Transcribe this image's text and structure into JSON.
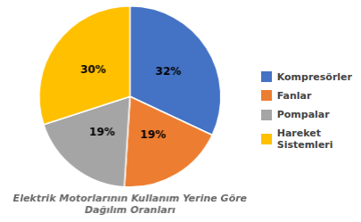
{
  "chart_data": {
    "type": "pie",
    "title": "Elektrik Motorlarının Kullanım Yerine Göre\nDağılım Oranları",
    "categories": [
      "Kompresörler",
      "Fanlar",
      "Pompalar",
      "Hareket\nSistemleri"
    ],
    "values": [
      32,
      19,
      19,
      30
    ],
    "value_labels": [
      "32%",
      "19%",
      "19%",
      "30%"
    ],
    "data_labels": true,
    "colors": [
      "#4472C4",
      "#ED7D31",
      "#A5A5A5",
      "#FFC000"
    ],
    "legend": "right"
  }
}
